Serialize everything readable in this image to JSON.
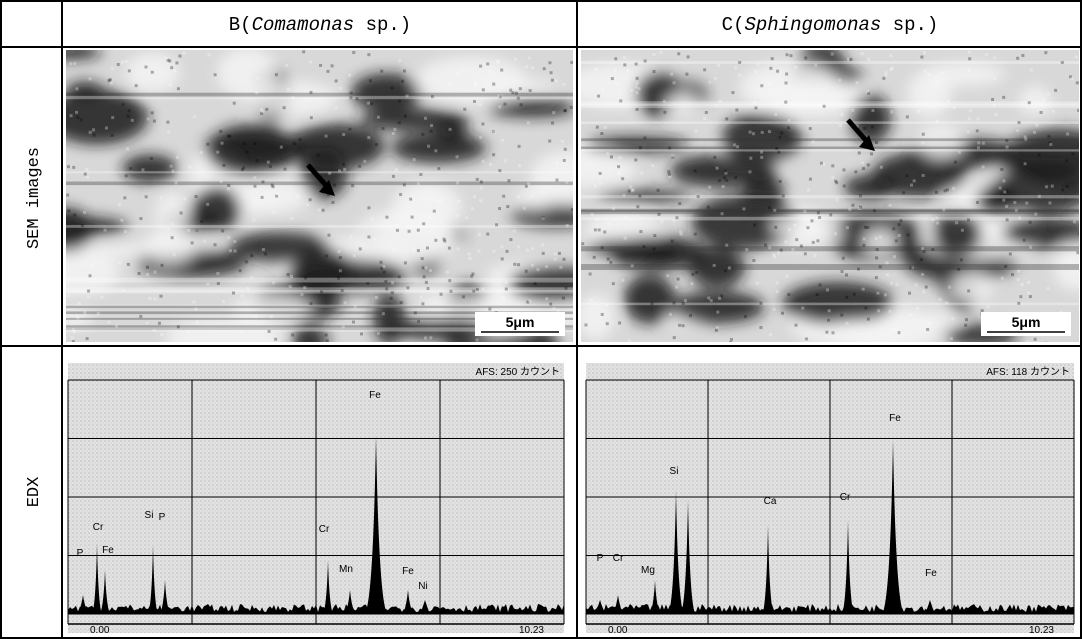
{
  "header": {
    "b": {
      "prefix": "B(",
      "genus": "Comamonas",
      "suffix": " sp.)"
    },
    "c": {
      "prefix": "C(",
      "genus": "Sphingomonas",
      "suffix": " sp.)"
    }
  },
  "rows": {
    "sem": "SEM images",
    "edx": "EDX"
  },
  "sem": {
    "b_scale": "5μm",
    "c_scale": "5μm"
  },
  "edx": {
    "b": {
      "afs": "AFS:  250 カウント",
      "x_start": "0.00",
      "x_end": "10.23",
      "peaks": [
        "P",
        "Cr",
        "Fe",
        "Si",
        "P",
        "Cr",
        "Mn",
        "Fe",
        "Fe",
        "Ni"
      ]
    },
    "c": {
      "afs": "AFS:  118 カウント",
      "x_start": "0.00",
      "x_end": "10.23",
      "peaks": [
        "P",
        "Cr",
        "Mg",
        "Si",
        "Ca",
        "Cr",
        "Fe",
        "Fe"
      ]
    }
  }
}
